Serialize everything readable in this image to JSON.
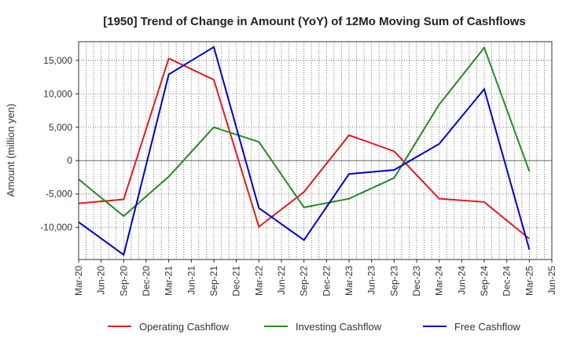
{
  "chart_data": {
    "type": "line",
    "title": "[1950]  Trend of Change in Amount (YoY) of 12Mo Moving Sum of Cashflows",
    "xlabel": "",
    "ylabel": "Amount (million yen)",
    "ylim": [
      -14800,
      17800
    ],
    "yticks": [
      15000,
      10000,
      5000,
      0,
      -5000,
      -10000
    ],
    "ytick_labels": [
      "15,000",
      "10,000",
      "5,000",
      "0",
      "-5,000",
      "-10,000"
    ],
    "x_ticks": [
      "Mar-20",
      "Jun-20",
      "Sep-20",
      "Dec-20",
      "Mar-21",
      "Jun-21",
      "Sep-21",
      "Dec-21",
      "Mar-22",
      "Jun-22",
      "Sep-22",
      "Dec-22",
      "Mar-23",
      "Jun-23",
      "Sep-23",
      "Dec-23",
      "Mar-24",
      "Jun-24",
      "Sep-24",
      "Dec-24",
      "Mar-25",
      "Jun-25"
    ],
    "grid": true,
    "legend_position": "bottom",
    "series": [
      {
        "name": "Operating Cashflow",
        "color": "#e31a1c",
        "x": [
          "Mar-20",
          "Sep-20",
          "Mar-21",
          "Sep-21",
          "Mar-22",
          "Sep-22",
          "Mar-23",
          "Sep-23",
          "Mar-24",
          "Sep-24",
          "Mar-25"
        ],
        "values": [
          -6400,
          -5800,
          15300,
          12100,
          -9900,
          -4700,
          3800,
          1400,
          -5700,
          -6200,
          -11700
        ]
      },
      {
        "name": "Investing Cashflow",
        "color": "#228b22",
        "x": [
          "Mar-20",
          "Sep-20",
          "Mar-21",
          "Sep-21",
          "Mar-22",
          "Sep-22",
          "Mar-23",
          "Sep-23",
          "Mar-24",
          "Sep-24",
          "Mar-25"
        ],
        "values": [
          -2800,
          -8300,
          -2400,
          5000,
          2800,
          -7000,
          -5700,
          -2600,
          8400,
          16900,
          -1600
        ]
      },
      {
        "name": "Free Cashflow",
        "color": "#0000cd",
        "x": [
          "Mar-20",
          "Sep-20",
          "Mar-21",
          "Sep-21",
          "Mar-22",
          "Sep-22",
          "Mar-23",
          "Sep-23",
          "Mar-24",
          "Sep-24",
          "Mar-25"
        ],
        "values": [
          -9200,
          -14100,
          12900,
          17000,
          -7100,
          -11900,
          -2000,
          -1400,
          2500,
          10700,
          -13300
        ]
      }
    ]
  }
}
